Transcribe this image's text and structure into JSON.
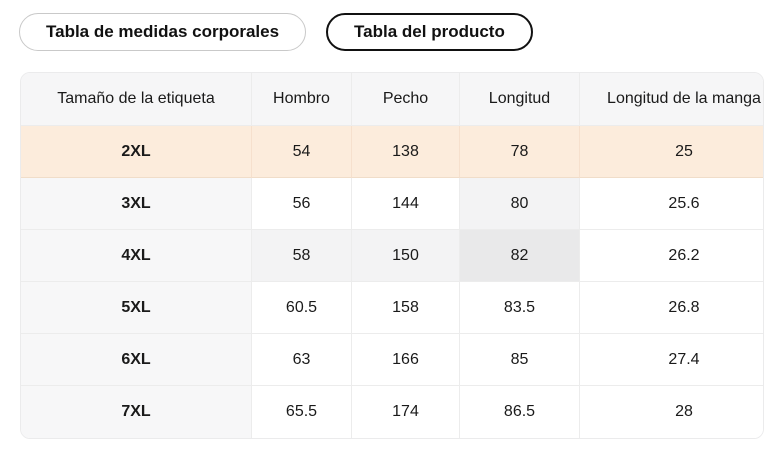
{
  "tabs": [
    {
      "label": "Tabla de medidas corporales",
      "active": false
    },
    {
      "label": "Tabla del producto",
      "active": true
    }
  ],
  "table": {
    "columns": [
      "Tamaño de la etiqueta",
      "Hombro",
      "Pecho",
      "Longitud",
      "Longitud de la manga"
    ],
    "rows": [
      {
        "label": "2XL",
        "values": [
          "54",
          "138",
          "78",
          "25"
        ]
      },
      {
        "label": "3XL",
        "values": [
          "56",
          "144",
          "80",
          "25.6"
        ]
      },
      {
        "label": "4XL",
        "values": [
          "58",
          "150",
          "82",
          "26.2"
        ]
      },
      {
        "label": "5XL",
        "values": [
          "60.5",
          "158",
          "83.5",
          "26.8"
        ]
      },
      {
        "label": "6XL",
        "values": [
          "63",
          "166",
          "85",
          "27.4"
        ]
      },
      {
        "label": "7XL",
        "values": [
          "65.5",
          "174",
          "86.5",
          "28"
        ]
      }
    ],
    "selected_row": 0,
    "hover_cell": {
      "row": 2,
      "col": 2
    }
  },
  "colors": {
    "selected_row_bg": "#fcecdc",
    "header_bg": "#f6f6f7",
    "label_col_bg": "#f7f7f8",
    "crosshair_bg": "#f3f3f4",
    "hover_cell_bg": "#e9e9ea",
    "cell_border": "#ececec",
    "tab_inactive_border": "#c9c9c9",
    "tab_active_border": "#111111"
  }
}
